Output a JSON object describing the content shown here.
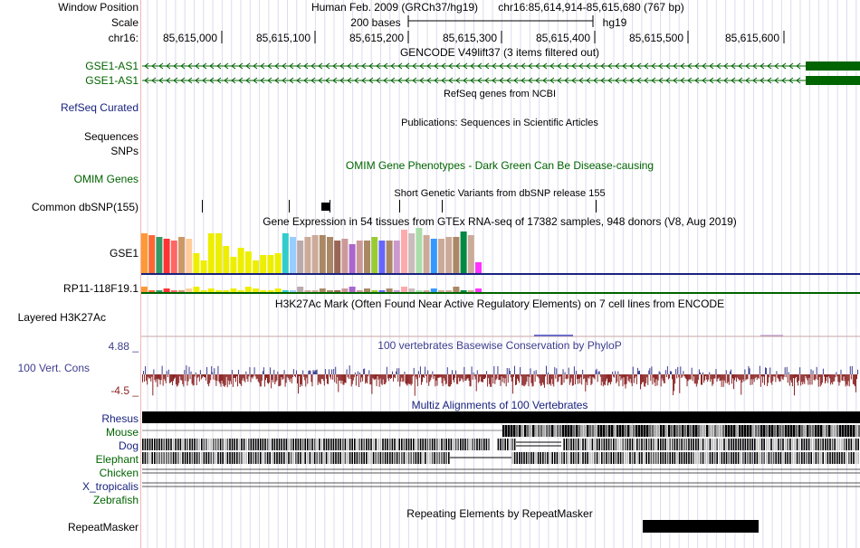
{
  "header": {
    "window_position_label": "Window Position",
    "assembly": "Human Feb. 2009 (GRCh37/hg19)",
    "position": "chr16:85,614,914-85,615,680 (767 bp)",
    "scale_label": "Scale",
    "scale_bases": "200 bases",
    "scale_db": "hg19",
    "chrom_label": "chr16:",
    "ruler_ticks": [
      "85,615,000",
      "85,615,100",
      "85,615,200",
      "85,615,300",
      "85,615,400",
      "85,615,500",
      "85,615,600"
    ]
  },
  "gencode": {
    "title": "GENCODE V49lift37 (3 items filtered out)",
    "genes": [
      "GSE1-AS1",
      "GSE1-AS1"
    ]
  },
  "refseq": {
    "title": "RefSeq genes from NCBI",
    "label": "RefSeq Curated"
  },
  "publications": {
    "title": "Publications: Sequences in Scientific Articles",
    "label_line1": "Sequences",
    "label_line2": "SNPs"
  },
  "omim": {
    "label": "OMIM Genes",
    "title": "OMIM Gene Phenotypes - Dark Green Can Be Disease-causing"
  },
  "dbsnp": {
    "title": "Short Genetic Variants from dbSNP release 155",
    "label": "Common dbSNP(155)"
  },
  "gtex": {
    "title": "Gene Expression in 54 tissues from GTEx RNA-seq of 17382 samples, 948 donors (V8, Aug 2019)",
    "gene1": "GSE1",
    "gene2": "RP11-118F19.1"
  },
  "h3k27ac": {
    "title": "H3K27Ac Mark (Often Found Near Active Regulatory Elements) on 7 cell lines from ENCODE",
    "label": "Layered H3K27Ac"
  },
  "conservation": {
    "title": "100 vertebrates Basewise Conservation by PhyloP",
    "label": "100 Vert. Cons",
    "max_label": "4.88 _",
    "min_label": "-4.5 _"
  },
  "multiz": {
    "title": "Multiz Alignments of 100 Vertebrates",
    "species": [
      "Rhesus",
      "Mouse",
      "Dog",
      "Elephant",
      "Chicken",
      "X_tropicalis",
      "Zebrafish"
    ]
  },
  "repeatmasker": {
    "title": "Repeating Elements by RepeatMasker",
    "label": "RepeatMasker"
  },
  "colors": {
    "gene_green": "#006400",
    "navy_label": "#1a237e",
    "cons_blue": "#3d3d8f",
    "cons_red": "#8b2323",
    "grid": "#d6d6ea",
    "divider": "#f2b6b6"
  }
}
